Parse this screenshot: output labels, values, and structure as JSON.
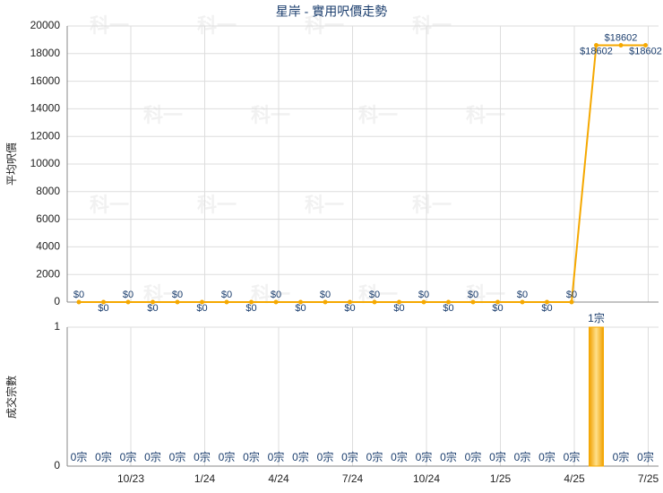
{
  "chart_data": [
    {
      "type": "line",
      "title": "星岸 - 實用呎價走勢",
      "ylabel": "平均呎價",
      "watermark": "科一",
      "categories": [
        null,
        null,
        "10/23",
        null,
        null,
        "1/24",
        null,
        null,
        "4/24",
        null,
        null,
        "7/24",
        null,
        null,
        "10/24",
        null,
        null,
        "1/25",
        null,
        null,
        "4/25",
        null,
        null,
        "7/25"
      ],
      "ylim": [
        0,
        20000
      ],
      "yticks": [
        0,
        2000,
        4000,
        6000,
        8000,
        10000,
        12000,
        14000,
        16000,
        18000,
        20000
      ],
      "grid": true,
      "series": [
        {
          "name": "平均呎價",
          "color": "#f5a800",
          "values": [
            0,
            0,
            0,
            0,
            0,
            0,
            0,
            0,
            0,
            0,
            0,
            0,
            0,
            0,
            0,
            0,
            0,
            0,
            0,
            0,
            0,
            18602,
            18602,
            18602
          ],
          "value_labels": [
            "$0",
            "$0",
            "$0",
            "$0",
            "$0",
            "$0",
            "$0",
            "$0",
            "$0",
            "$0",
            "$0",
            "$0",
            "$0",
            "$0",
            "$0",
            "$0",
            "$0",
            "$0",
            "$0",
            "$0",
            "$0",
            "$18602",
            "$18602",
            "$18602"
          ]
        }
      ]
    },
    {
      "type": "bar",
      "ylabel": "成交宗數",
      "color": "#f5a800",
      "categories": [
        null,
        null,
        "10/23",
        null,
        null,
        "1/24",
        null,
        null,
        "4/24",
        null,
        null,
        "7/24",
        null,
        null,
        "10/24",
        null,
        null,
        "1/25",
        null,
        null,
        "4/25",
        null,
        null,
        "7/25"
      ],
      "ylim": [
        0,
        1
      ],
      "yticks": [
        0,
        1
      ],
      "grid": true,
      "values": [
        0,
        0,
        0,
        0,
        0,
        0,
        0,
        0,
        0,
        0,
        0,
        0,
        0,
        0,
        0,
        0,
        0,
        0,
        0,
        0,
        0,
        1,
        0,
        0
      ],
      "value_labels": [
        "0宗",
        "0宗",
        "0宗",
        "0宗",
        "0宗",
        "0宗",
        "0宗",
        "0宗",
        "0宗",
        "0宗",
        "0宗",
        "0宗",
        "0宗",
        "0宗",
        "0宗",
        "0宗",
        "0宗",
        "0宗",
        "0宗",
        "0宗",
        "0宗",
        "1宗",
        "0宗",
        "0宗"
      ]
    }
  ]
}
